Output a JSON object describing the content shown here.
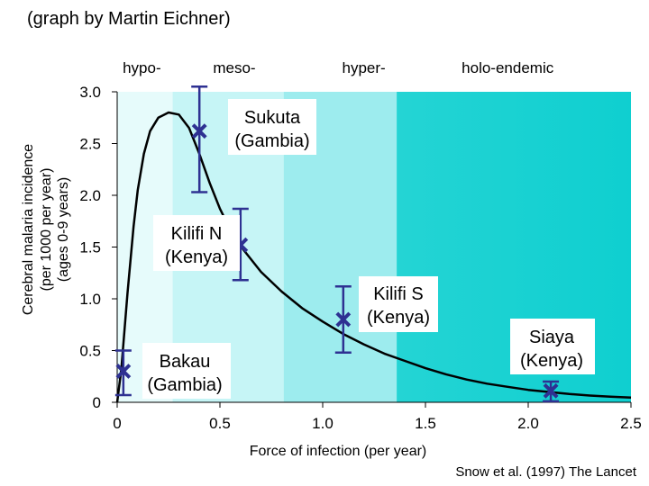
{
  "header": {
    "credit": "(graph by Martin Eichner)",
    "source": "Snow et al. (1997) The Lancet"
  },
  "chart_data": {
    "type": "scatter",
    "title": "",
    "xlabel": "Force of infection (per year)",
    "ylabel_lines": [
      "Cerebral malaria incidence",
      "(per 1000 per year)",
      "(ages 0-9 years)"
    ],
    "xlim": [
      0,
      2.5
    ],
    "ylim": [
      0,
      3.0
    ],
    "x_ticks": [
      {
        "value": 0,
        "label": "0"
      },
      {
        "value": 0.5,
        "label": "0.5"
      },
      {
        "value": 1.0,
        "label": "1.0"
      },
      {
        "value": 1.5,
        "label": "1.5"
      },
      {
        "value": 2.0,
        "label": "2.0"
      },
      {
        "value": 2.5,
        "label": "2.5"
      }
    ],
    "y_ticks": [
      {
        "value": 0,
        "label": "0"
      },
      {
        "value": 0.5,
        "label": "0.5"
      },
      {
        "value": 1.0,
        "label": "1.0"
      },
      {
        "value": 1.5,
        "label": "1.5"
      },
      {
        "value": 2.0,
        "label": "2.0"
      },
      {
        "value": 2.5,
        "label": "2.5"
      },
      {
        "value": 3.0,
        "label": "3.0"
      }
    ],
    "zones": [
      {
        "name": "hypo-",
        "x0": 0,
        "x1": 0.27,
        "color": "#e6fbfb"
      },
      {
        "name": "meso-",
        "x0": 0.27,
        "x1": 0.81,
        "color": "#c6f5f6"
      },
      {
        "name": "hyper-",
        "x0": 0.81,
        "x1": 1.36,
        "color": "#9decee"
      },
      {
        "name": "holo-endemic",
        "x0": 1.36,
        "x1": 2.5,
        "color": "#22d3d3",
        "color_end": "#0fcfd0"
      }
    ],
    "zone_labels": [
      {
        "text": "hypo-",
        "x": 0.12
      },
      {
        "text": "meso-",
        "x": 0.57
      },
      {
        "text": "hyper-",
        "x": 1.2
      },
      {
        "text": "holo-endemic",
        "x": 1.9
      }
    ],
    "points": [
      {
        "lines": [
          "Bakau",
          "(Gambia)"
        ],
        "x": 0.03,
        "y": 0.3,
        "y_low": 0.07,
        "y_high": 0.5
      },
      {
        "lines": [
          "Sukuta",
          "(Gambia)"
        ],
        "x": 0.4,
        "y": 2.62,
        "y_low": 2.03,
        "y_high": 3.05
      },
      {
        "lines": [
          "Kilifi N",
          "(Kenya)"
        ],
        "x": 0.6,
        "y": 1.52,
        "y_low": 1.18,
        "y_high": 1.87
      },
      {
        "lines": [
          "Kilifi S",
          "(Kenya)"
        ],
        "x": 1.1,
        "y": 0.8,
        "y_low": 0.48,
        "y_high": 1.12
      },
      {
        "lines": [
          "Siaya",
          "(Kenya)"
        ],
        "x": 2.11,
        "y": 0.11,
        "y_low": 0.01,
        "y_high": 0.2
      }
    ],
    "fit_curve": {
      "x": [
        0.0,
        0.02,
        0.05,
        0.08,
        0.1,
        0.13,
        0.16,
        0.2,
        0.25,
        0.3,
        0.35,
        0.4,
        0.45,
        0.5,
        0.55,
        0.6,
        0.7,
        0.8,
        0.9,
        1.0,
        1.1,
        1.2,
        1.3,
        1.4,
        1.5,
        1.6,
        1.7,
        1.8,
        1.9,
        2.0,
        2.1,
        2.2,
        2.3,
        2.4,
        2.5
      ],
      "y": [
        0.0,
        0.32,
        1.05,
        1.7,
        2.05,
        2.4,
        2.62,
        2.75,
        2.8,
        2.78,
        2.65,
        2.4,
        2.12,
        1.87,
        1.67,
        1.51,
        1.26,
        1.07,
        0.91,
        0.78,
        0.66,
        0.56,
        0.47,
        0.4,
        0.33,
        0.27,
        0.22,
        0.18,
        0.15,
        0.12,
        0.1,
        0.08,
        0.065,
        0.055,
        0.045
      ]
    },
    "marker_color": "#2e3192",
    "curve_color": "#000000"
  }
}
